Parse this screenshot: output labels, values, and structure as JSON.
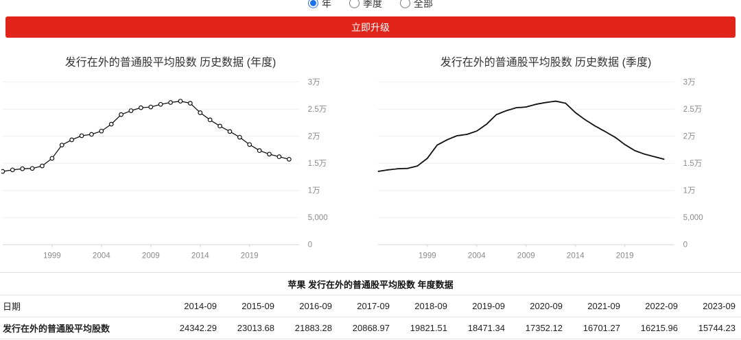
{
  "period_selector": {
    "options": [
      {
        "label": "年",
        "selected": true
      },
      {
        "label": "季度",
        "selected": false
      },
      {
        "label": "全部",
        "selected": false
      }
    ]
  },
  "banner": {
    "label": "立即升级",
    "color": "#e1251b"
  },
  "chart_data": [
    {
      "type": "line",
      "title": "发行在外的普通股平均股数 历史数据 (年度)",
      "markers": true,
      "x_start": 1994,
      "x_step": 1,
      "values": [
        13510,
        13790,
        14000,
        14060,
        14520,
        15930,
        18370,
        19340,
        20100,
        20340,
        20950,
        22230,
        24000,
        24720,
        25260,
        25400,
        25890,
        26230,
        26470,
        26090,
        24342.29,
        23013.68,
        21883.28,
        20868.97,
        19821.51,
        18471.34,
        17352.12,
        16701.27,
        16215.96,
        15744.23
      ],
      "xlim": [
        1994,
        2024
      ],
      "ylim": [
        0,
        30000
      ],
      "x_ticks": [
        1999,
        2004,
        2009,
        2014,
        2019
      ],
      "y_ticks": [
        {
          "v": 0,
          "label": "0"
        },
        {
          "v": 5000,
          "label": "5,000"
        },
        {
          "v": 10000,
          "label": "1万"
        },
        {
          "v": 15000,
          "label": "1.5万"
        },
        {
          "v": 20000,
          "label": "2万"
        },
        {
          "v": 25000,
          "label": "2.5万"
        },
        {
          "v": 30000,
          "label": "3万"
        }
      ],
      "grid": true,
      "line_color": "#111111"
    },
    {
      "type": "line",
      "title": "发行在外的普通股平均股数 历史数据 (季度)",
      "markers": false,
      "x_start": 1994,
      "x_step": 0.25,
      "values": [
        13510,
        13580,
        13650,
        13720,
        13790,
        13843,
        13895,
        13948,
        14000,
        14015,
        14030,
        14045,
        14060,
        14175,
        14290,
        14405,
        14520,
        14873,
        15225,
        15578,
        15930,
        16540,
        17150,
        17760,
        18370,
        18613,
        18855,
        19098,
        19340,
        19530,
        19720,
        19910,
        20100,
        20160,
        20220,
        20280,
        20340,
        20493,
        20645,
        20798,
        20950,
        21270,
        21590,
        21910,
        22230,
        22673,
        23115,
        23558,
        24000,
        24180,
        24360,
        24540,
        24720,
        24855,
        24990,
        25125,
        25260,
        25295,
        25330,
        25365,
        25400,
        25523,
        25645,
        25768,
        25890,
        25975,
        26060,
        26145,
        26230,
        26290,
        26350,
        26410,
        26470,
        26375,
        26280,
        26185,
        26090,
        25653,
        25216,
        24779,
        24342,
        24010,
        23678,
        23346,
        23014,
        22731,
        22448,
        22166,
        21883,
        21630,
        21376,
        21123,
        20869,
        20607,
        20345,
        20084,
        19822,
        19484,
        19146,
        18809,
        18471,
        18191,
        17912,
        17632,
        17352,
        17189,
        17027,
        16864,
        16701,
        16580,
        16459,
        16337,
        16216,
        16098,
        15980,
        15862,
        15744
      ],
      "xlim": [
        1994,
        2024
      ],
      "ylim": [
        0,
        30000
      ],
      "x_ticks": [
        1999,
        2004,
        2009,
        2014,
        2019
      ],
      "y_ticks": [
        {
          "v": 0,
          "label": "0"
        },
        {
          "v": 5000,
          "label": "5,000"
        },
        {
          "v": 10000,
          "label": "1万"
        },
        {
          "v": 15000,
          "label": "1.5万"
        },
        {
          "v": 20000,
          "label": "2万"
        },
        {
          "v": 25000,
          "label": "2.5万"
        },
        {
          "v": 30000,
          "label": "3万"
        }
      ],
      "grid": true,
      "line_color": "#111111"
    }
  ],
  "table": {
    "title": "苹果 发行在外的普通股平均股数 年度数据",
    "date_label": "日期",
    "metric_label": "发行在外的普通股平均股数",
    "dates": [
      "2014-09",
      "2015-09",
      "2016-09",
      "2017-09",
      "2018-09",
      "2019-09",
      "2020-09",
      "2021-09",
      "2022-09",
      "2023-09"
    ],
    "values": [
      "24342.29",
      "23013.68",
      "21883.28",
      "20868.97",
      "19821.51",
      "18471.34",
      "17352.12",
      "16701.27",
      "16215.96",
      "15744.23"
    ]
  }
}
